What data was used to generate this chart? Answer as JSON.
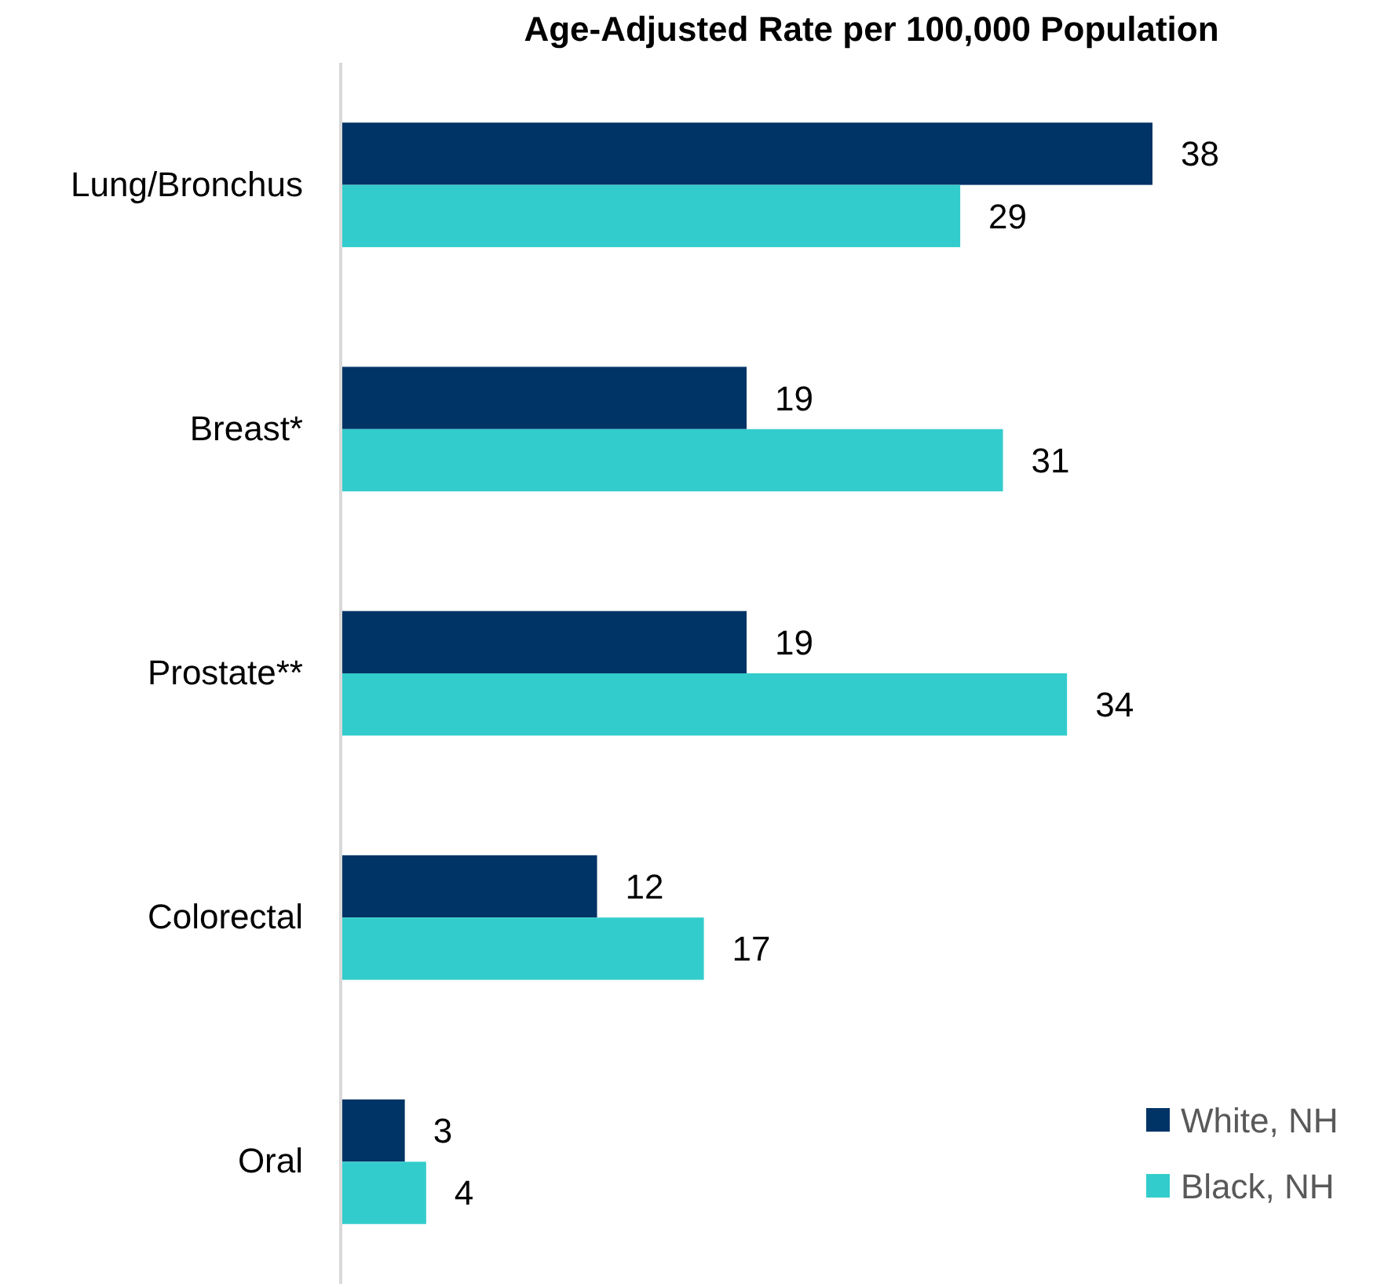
{
  "chart_data": {
    "type": "bar",
    "orientation": "horizontal",
    "title": "Age-Adjusted Rate per 100,000 Population",
    "categories": [
      "Lung/Bronchus",
      "Breast*",
      "Prostate**",
      "Colorectal",
      "Oral"
    ],
    "series": [
      {
        "name": "White, NH",
        "color": "#003366",
        "values": [
          38,
          19,
          19,
          12,
          3
        ]
      },
      {
        "name": "Black, NH",
        "color": "#33cccc",
        "values": [
          29,
          31,
          34,
          17,
          4
        ]
      }
    ],
    "tick_labels": "y",
    "data_labels": true,
    "legend": "bottom right"
  }
}
